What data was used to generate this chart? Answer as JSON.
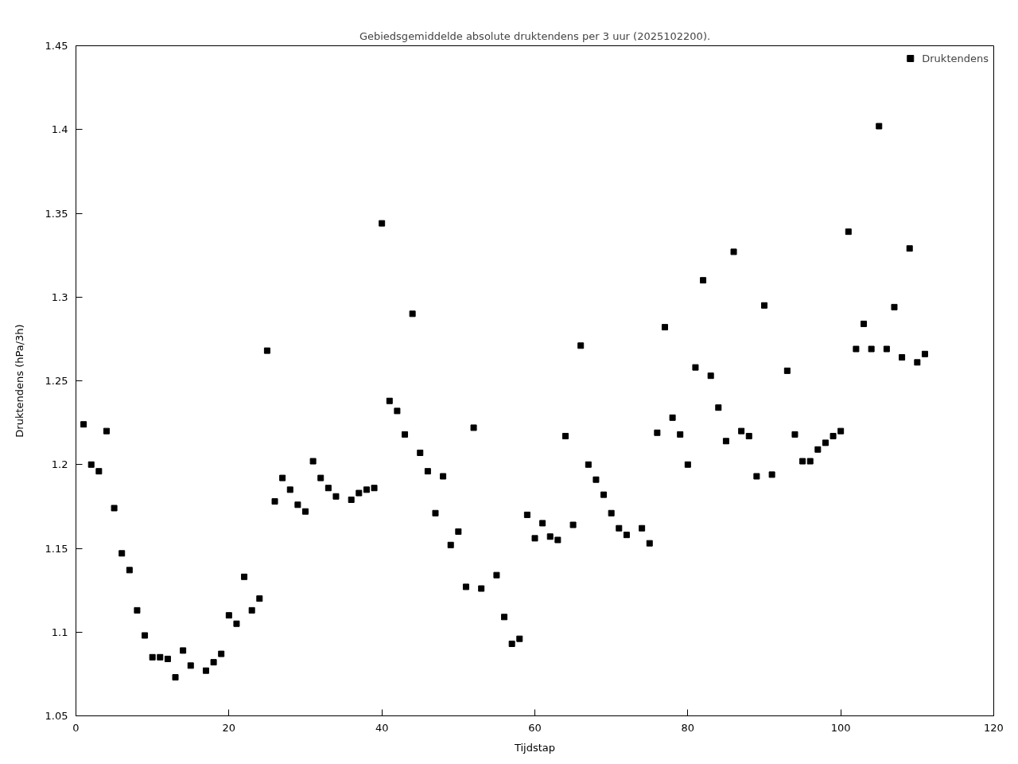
{
  "chart_data": {
    "type": "scatter",
    "title": "Gebiedsgemiddelde absolute druktendens per 3 uur (2025102200).",
    "xlabel": "Tijdstap",
    "ylabel": "Druktendens (hPa/3h)",
    "xlim": [
      0,
      120
    ],
    "ylim": [
      1.05,
      1.45
    ],
    "xticks": [
      0,
      20,
      40,
      60,
      80,
      100,
      120
    ],
    "yticks": [
      1.05,
      1.1,
      1.15,
      1.2,
      1.25,
      1.3,
      1.35,
      1.4,
      1.45
    ],
    "grid": false,
    "legend": "top right",
    "marker": "square",
    "series": [
      {
        "name": "Druktendens",
        "color": "#000000",
        "x": [
          1,
          2,
          3,
          4,
          5,
          6,
          7,
          8,
          9,
          10,
          11,
          12,
          13,
          14,
          15,
          17,
          18,
          19,
          20,
          21,
          22,
          23,
          24,
          25,
          26,
          27,
          28,
          29,
          30,
          31,
          32,
          33,
          34,
          36,
          37,
          38,
          39,
          40,
          41,
          42,
          43,
          44,
          45,
          46,
          47,
          48,
          49,
          50,
          51,
          52,
          53,
          55,
          56,
          57,
          58,
          59,
          60,
          61,
          62,
          63,
          64,
          65,
          66,
          67,
          68,
          69,
          70,
          71,
          72,
          74,
          75,
          76,
          77,
          78,
          79,
          80,
          81,
          82,
          83,
          84,
          85,
          86,
          87,
          88,
          89,
          90,
          91,
          93,
          94,
          95,
          96,
          97,
          98,
          99,
          100,
          101,
          102,
          103,
          104,
          105,
          106,
          107,
          108,
          109,
          110,
          111
        ],
        "values": [
          1.224,
          1.2,
          1.196,
          1.22,
          1.174,
          1.147,
          1.137,
          1.113,
          1.098,
          1.085,
          1.085,
          1.084,
          1.073,
          1.089,
          1.08,
          1.077,
          1.082,
          1.087,
          1.11,
          1.105,
          1.133,
          1.113,
          1.12,
          1.268,
          1.178,
          1.192,
          1.185,
          1.176,
          1.172,
          1.202,
          1.192,
          1.186,
          1.181,
          1.179,
          1.183,
          1.185,
          1.186,
          1.344,
          1.238,
          1.232,
          1.218,
          1.29,
          1.207,
          1.196,
          1.171,
          1.193,
          1.152,
          1.16,
          1.127,
          1.222,
          1.126,
          1.134,
          1.109,
          1.093,
          1.096,
          1.17,
          1.156,
          1.165,
          1.157,
          1.155,
          1.217,
          1.164,
          1.271,
          1.2,
          1.191,
          1.182,
          1.171,
          1.162,
          1.158,
          1.162,
          1.153,
          1.219,
          1.282,
          1.228,
          1.218,
          1.2,
          1.258,
          1.31,
          1.253,
          1.234,
          1.214,
          1.327,
          1.22,
          1.217,
          1.193,
          1.295,
          1.194,
          1.256,
          1.218,
          1.202,
          1.202,
          1.209,
          1.213,
          1.217,
          1.22,
          1.339,
          1.269,
          1.284,
          1.269,
          1.402,
          1.269,
          1.294,
          1.264,
          1.329,
          1.261,
          1.266
        ]
      }
    ]
  }
}
